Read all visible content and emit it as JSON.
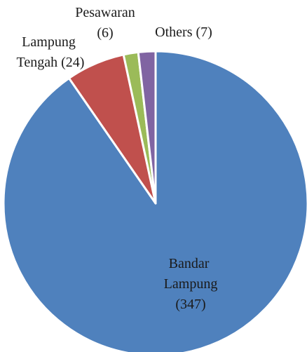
{
  "chart_data": {
    "type": "pie",
    "categories": [
      "Bandar Lampung",
      "Lampung Tengah",
      "Pesawaran",
      "Others"
    ],
    "values": [
      347,
      24,
      6,
      7
    ],
    "value_labels": [
      "(347)",
      "(24)",
      "(6)",
      "(7)"
    ],
    "colors": [
      "#4f81bd",
      "#c0504d",
      "#9bbb59",
      "#8064a2"
    ]
  }
}
